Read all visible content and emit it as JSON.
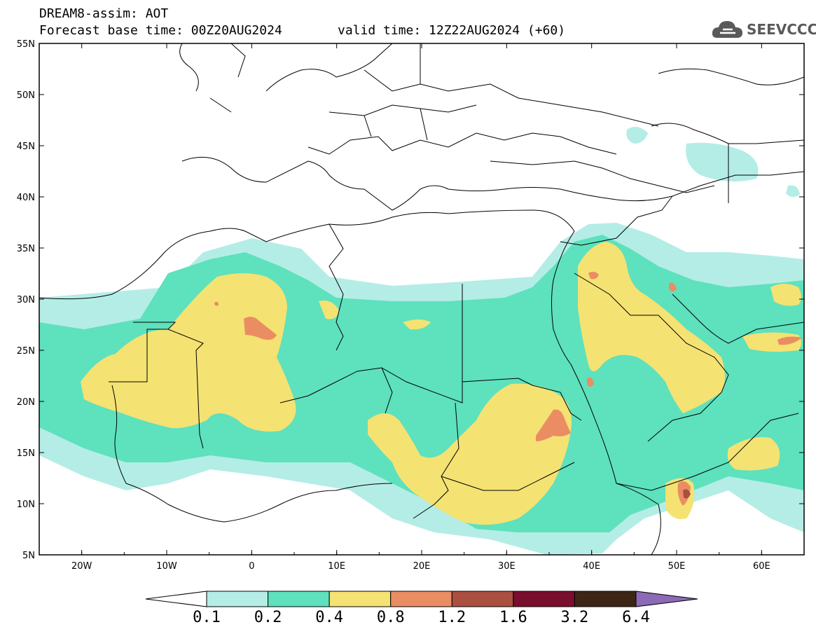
{
  "title": {
    "line1": "DREAM8-assim: AOT",
    "base_time": "Forecast base time: 00Z20AUG2024",
    "valid_time": "valid time: 12Z22AUG2024 (+60)"
  },
  "logo": {
    "text": "SEEVCCC",
    "icon": "cloud-icon"
  },
  "map": {
    "lon_range": [
      -25,
      65
    ],
    "lat_range": [
      5,
      55
    ],
    "lat_ticks": [
      "5N",
      "10N",
      "15N",
      "20N",
      "25N",
      "30N",
      "35N",
      "40N",
      "45N",
      "50N",
      "55N"
    ],
    "lon_ticks": [
      "20W",
      "10W",
      "0",
      "10E",
      "20E",
      "30E",
      "40E",
      "50E",
      "60E"
    ]
  },
  "colorbar": {
    "labels": [
      "0.1",
      "0.2",
      "0.4",
      "0.8",
      "1.2",
      "1.6",
      "3.2",
      "6.4"
    ],
    "colors": [
      "#b4ede6",
      "#5ee1bd",
      "#f4e273",
      "#ea8d63",
      "#ab4f41",
      "#7a0e2e",
      "#3e2616",
      "#8d6ab5"
    ],
    "under_color": "#ffffff"
  }
}
